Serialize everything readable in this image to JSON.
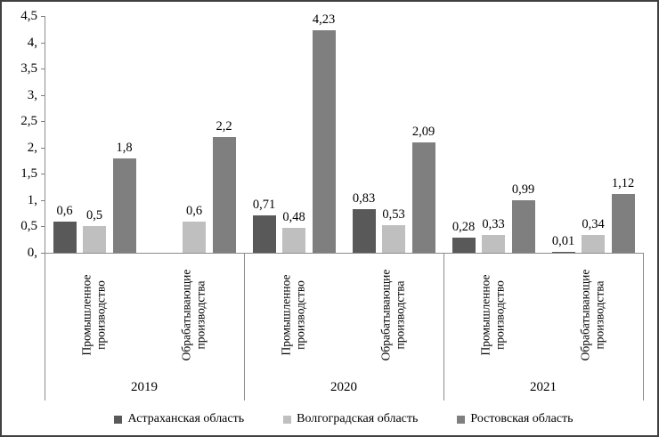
{
  "chart_data": {
    "type": "bar",
    "title": "",
    "y_axis": {
      "min": 0,
      "max": 4.5,
      "step": 0.5,
      "tick_labels": [
        "0,",
        "0,5",
        "1,",
        "1,5",
        "2,",
        "2,5",
        "3,",
        "3,5",
        "4,",
        "4,5"
      ]
    },
    "series": [
      {
        "name": "Астраханская область",
        "color": "#595959"
      },
      {
        "name": "Волгоградская область",
        "color": "#bfbfbf"
      },
      {
        "name": "Ростовская область",
        "color": "#7f7f7f"
      }
    ],
    "groups": [
      {
        "year": "2019",
        "categories": [
          {
            "label_lines": [
              "Промышленное",
              "производство"
            ],
            "values": [
              0.6,
              0.5,
              1.8
            ],
            "value_labels": [
              "0,6",
              "0,5",
              "1,8"
            ]
          },
          {
            "label_lines": [
              "Обрабатывающие",
              "производства"
            ],
            "values": [
              null,
              0.6,
              2.2
            ],
            "value_labels": [
              null,
              "0,6",
              "2,2"
            ]
          }
        ]
      },
      {
        "year": "2020",
        "categories": [
          {
            "label_lines": [
              "Промышленное",
              "производство"
            ],
            "values": [
              0.71,
              0.48,
              4.23
            ],
            "value_labels": [
              "0,71",
              "0,48",
              "4,23"
            ]
          },
          {
            "label_lines": [
              "Обрабатывающие",
              "производства"
            ],
            "values": [
              0.83,
              0.53,
              2.09
            ],
            "value_labels": [
              "0,83",
              "0,53",
              "2,09"
            ]
          }
        ]
      },
      {
        "year": "2021",
        "categories": [
          {
            "label_lines": [
              "Промышленное",
              "производство"
            ],
            "values": [
              0.28,
              0.33,
              0.99
            ],
            "value_labels": [
              "0,28",
              "0,33",
              "0,99"
            ]
          },
          {
            "label_lines": [
              "Обрабатывающие",
              "производства"
            ],
            "values": [
              0.01,
              0.34,
              1.12
            ],
            "value_labels": [
              "0,01",
              "0,34",
              "1,12"
            ]
          }
        ]
      }
    ],
    "legend_position": "bottom",
    "grid": false,
    "colors": {
      "axis": "#8c8c8c",
      "border": "#404040",
      "background": "#ffffff",
      "text": "#000000"
    }
  }
}
